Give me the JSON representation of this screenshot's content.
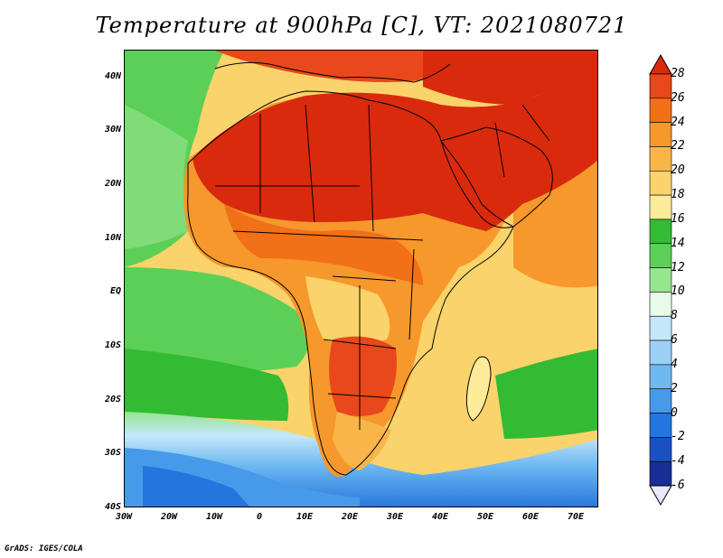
{
  "title": "Temperature at 900hPa [C], VT: 2021080721",
  "credit": "GrADS: IGES/COLA",
  "map": {
    "lat_range": [
      -40,
      45
    ],
    "lon_range": [
      -30,
      75
    ],
    "lat_ticks": [
      {
        "value": 40,
        "label": "40N"
      },
      {
        "value": 30,
        "label": "30N"
      },
      {
        "value": 20,
        "label": "20N"
      },
      {
        "value": 10,
        "label": "10N"
      },
      {
        "value": 0,
        "label": "EQ"
      },
      {
        "value": -10,
        "label": "10S"
      },
      {
        "value": -20,
        "label": "20S"
      },
      {
        "value": -30,
        "label": "30S"
      },
      {
        "value": -40,
        "label": "40S"
      }
    ],
    "lon_ticks": [
      {
        "value": -30,
        "label": "30W"
      },
      {
        "value": -20,
        "label": "20W"
      },
      {
        "value": -10,
        "label": "10W"
      },
      {
        "value": 0,
        "label": "0"
      },
      {
        "value": 10,
        "label": "10E"
      },
      {
        "value": 20,
        "label": "20E"
      },
      {
        "value": 30,
        "label": "30E"
      },
      {
        "value": 40,
        "label": "40E"
      },
      {
        "value": 50,
        "label": "50E"
      },
      {
        "value": 60,
        "label": "60E"
      },
      {
        "value": 70,
        "label": "70E"
      }
    ]
  },
  "colorbar": {
    "ticks": [
      "28",
      "26",
      "24",
      "22",
      "20",
      "18",
      "16",
      "14",
      "12",
      "10",
      "8",
      "6",
      "4",
      "2",
      "0",
      "-2",
      "-4",
      "-6"
    ],
    "colors": [
      "#d92a0e",
      "#e8481b",
      "#f27017",
      "#f6982b",
      "#f9b549",
      "#fbd36b",
      "#fdeb9a",
      "#33bb33",
      "#5ccf57",
      "#96e58f",
      "#e8fbe8",
      "#c4e7fb",
      "#9cd1f7",
      "#6fb9f1",
      "#4799ea",
      "#2476de",
      "#1a52c2",
      "#172e94",
      "#141a66"
    ]
  }
}
